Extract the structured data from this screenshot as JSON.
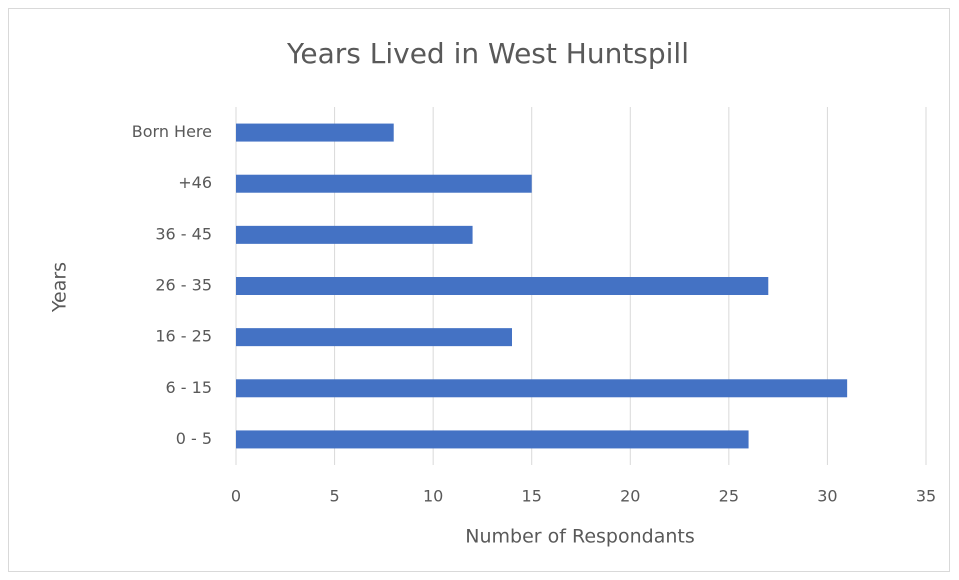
{
  "chart_data": {
    "type": "hbar",
    "title": "Years Lived in West Huntspill",
    "x_label": "Number of Respondants",
    "y_label": "Years",
    "categories": [
      "Born Here",
      "+46",
      "36 - 45",
      "26 - 35",
      "16 - 25",
      "6 - 15",
      "0 - 5"
    ],
    "values": [
      8,
      15,
      12,
      27,
      14,
      31,
      26
    ],
    "color": "#4472c4",
    "xlim": [
      0,
      35
    ],
    "xticks": [
      0,
      5,
      10,
      15,
      20,
      25,
      30,
      35
    ],
    "grid": true
  }
}
